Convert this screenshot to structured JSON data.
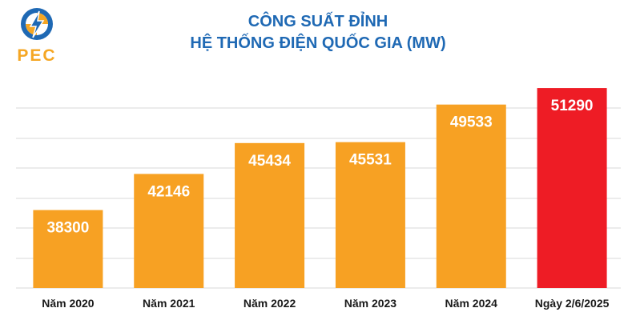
{
  "logo": {
    "text": "PEC",
    "colors": {
      "blue": "#1f69b4",
      "orange": "#f5a623"
    }
  },
  "colors": {
    "bar": "#f7a123",
    "highlight": "#ee1c25",
    "title": "#1f69b4",
    "grid": "#d9d9d9"
  },
  "chart_data": {
    "type": "bar",
    "title": [
      "CÔNG SUẤT ĐỈNH",
      "HỆ THỐNG ĐIỆN QUỐC GIA (MW)"
    ],
    "categories": [
      "Năm 2020",
      "Năm 2021",
      "Năm 2022",
      "Năm 2023",
      "Năm 2024",
      "Ngày 2/6/2025"
    ],
    "values": [
      38300,
      42146,
      45434,
      45531,
      49533,
      51290
    ],
    "highlight_index": 5,
    "ylim": [
      30000,
      53000
    ],
    "grid": true,
    "data_labels": true
  }
}
